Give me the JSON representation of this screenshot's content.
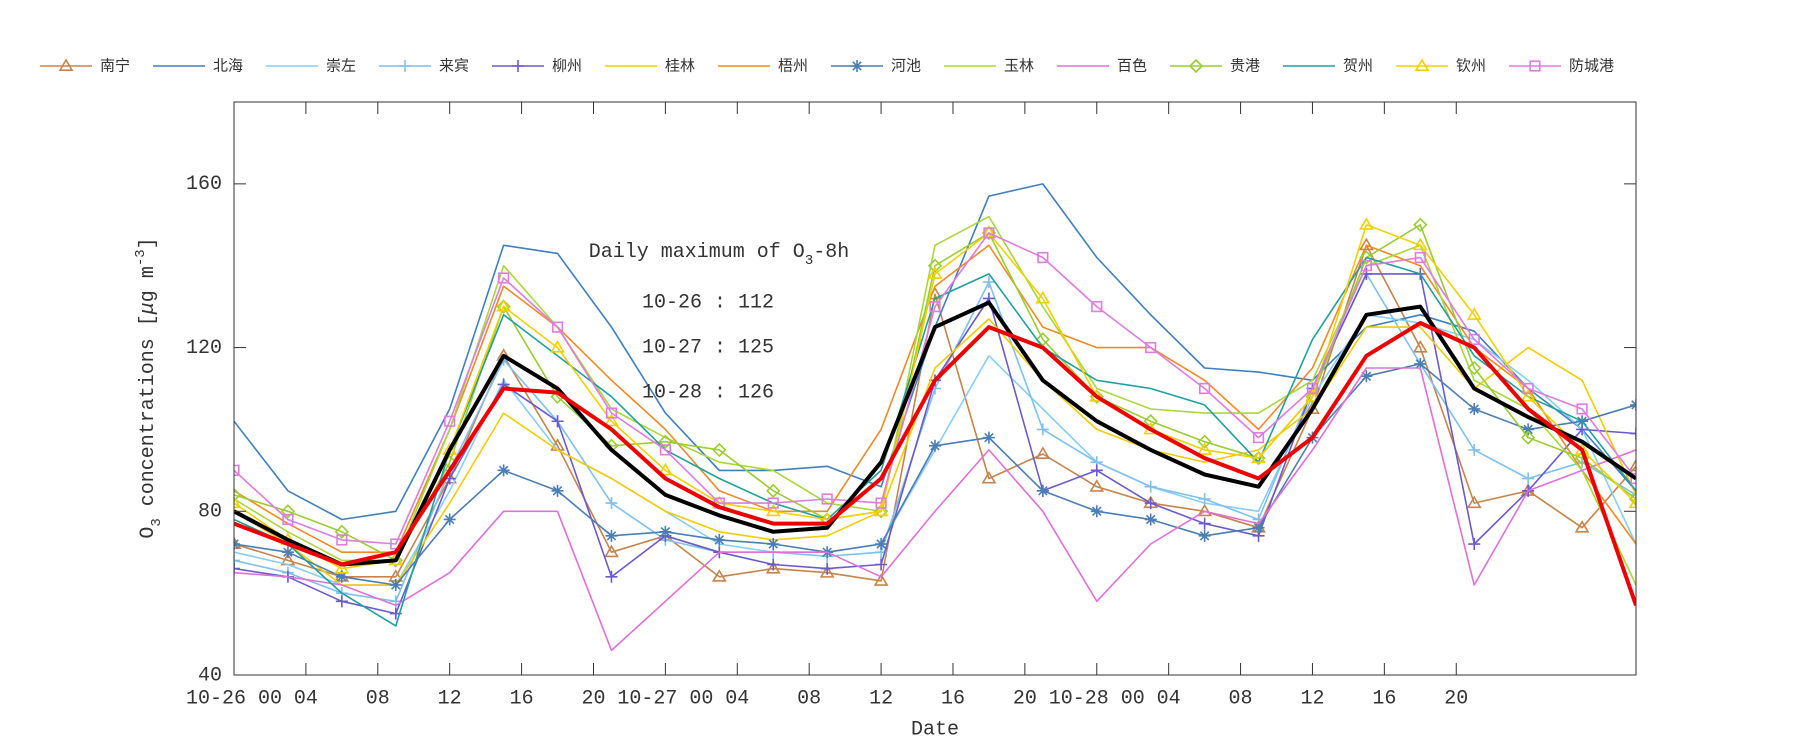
{
  "chart_data": {
    "type": "line",
    "xlabel": "Date",
    "ylabel": [
      {
        "text": "O"
      },
      {
        "text": "3",
        "shift": "sub"
      },
      {
        "text": " concentrations ["
      },
      {
        "text": "μ",
        "style": "italic"
      },
      {
        "text": "g m"
      },
      {
        "text": "-3",
        "shift": "super"
      },
      {
        "text": "]"
      }
    ],
    "annotation": {
      "title": [
        {
          "text": "Daily maximum of O"
        },
        {
          "text": "3",
          "shift": "sub"
        },
        {
          "text": "-8h"
        }
      ],
      "lines": [
        "10-26 : 112",
        "10-27 : 125",
        "10-28 : 126"
      ]
    },
    "legend": "top",
    "xlim": [
      0,
      78
    ],
    "ylim": [
      40,
      180
    ],
    "yticks": [
      40,
      80,
      120,
      160
    ],
    "xticks": [
      {
        "value": 0,
        "label": "10-26 00"
      },
      {
        "value": 4,
        "label": "04"
      },
      {
        "value": 8,
        "label": "08"
      },
      {
        "value": 12,
        "label": "12"
      },
      {
        "value": 16,
        "label": "16"
      },
      {
        "value": 20,
        "label": "20"
      },
      {
        "value": 24,
        "label": "10-27 00"
      },
      {
        "value": 28,
        "label": "04"
      },
      {
        "value": 32,
        "label": "08"
      },
      {
        "value": 36,
        "label": "12"
      },
      {
        "value": 40,
        "label": "16"
      },
      {
        "value": 44,
        "label": "20"
      },
      {
        "value": 48,
        "label": "10-28 00"
      },
      {
        "value": 52,
        "label": "04"
      },
      {
        "value": 56,
        "label": "08"
      },
      {
        "value": 60,
        "label": "12"
      },
      {
        "value": 64,
        "label": "16"
      },
      {
        "value": 68,
        "label": "20"
      }
    ],
    "x": [
      0,
      3,
      6,
      9,
      12,
      15,
      18,
      21,
      24,
      27,
      30,
      33,
      36,
      39,
      42,
      45,
      48,
      51,
      54,
      57,
      60,
      63,
      66,
      69,
      72,
      75,
      78
    ],
    "series": [
      {
        "name": "南宁",
        "color": "#c8834a",
        "marker": "triangle",
        "values": [
          72,
          68,
          64,
          64,
          88,
          118,
          96,
          70,
          74,
          64,
          66,
          65,
          63,
          133,
          88,
          94,
          86,
          82,
          80,
          76,
          105,
          145,
          120,
          82,
          85,
          76,
          91
        ]
      },
      {
        "name": "北海",
        "color": "#3f7fbf",
        "marker": "none",
        "values": [
          102,
          85,
          78,
          80,
          105,
          145,
          143,
          125,
          104,
          90,
          90,
          91,
          86,
          125,
          157,
          160,
          142,
          128,
          115,
          114,
          112,
          125,
          128,
          124,
          110,
          100,
          85
        ]
      },
      {
        "name": "崇左",
        "color": "#87cefa",
        "marker": "none",
        "values": [
          70,
          67,
          62,
          62,
          85,
          112,
          95,
          88,
          80,
          72,
          70,
          70,
          72,
          95,
          118,
          105,
          92,
          86,
          82,
          80,
          108,
          128,
          126,
          122,
          112,
          100,
          72
        ]
      },
      {
        "name": "来宾",
        "color": "#7ec0f0",
        "marker": "plus",
        "values": [
          68,
          65,
          60,
          58,
          90,
          117,
          102,
          82,
          73,
          70,
          70,
          69,
          70,
          110,
          136,
          100,
          92,
          86,
          83,
          78,
          110,
          138,
          116,
          95,
          88,
          92,
          84
        ]
      },
      {
        "name": "柳州",
        "color": "#6a5acd",
        "marker": "plus",
        "values": [
          66,
          64,
          58,
          55,
          88,
          111,
          102,
          64,
          74,
          70,
          67,
          66,
          67,
          112,
          132,
          85,
          90,
          82,
          77,
          74,
          110,
          138,
          138,
          72,
          85,
          100,
          99
        ]
      },
      {
        "name": "桂林",
        "color": "#f5cc00",
        "marker": "none",
        "values": [
          80,
          72,
          62,
          62,
          82,
          104,
          95,
          88,
          80,
          75,
          73,
          74,
          80,
          115,
          127,
          112,
          100,
          95,
          92,
          95,
          105,
          125,
          125,
          110,
          120,
          112,
          84
        ]
      },
      {
        "name": "梧州",
        "color": "#f08a24",
        "marker": "none",
        "values": [
          85,
          77,
          70,
          70,
          100,
          135,
          125,
          112,
          100,
          85,
          80,
          80,
          100,
          135,
          145,
          125,
          120,
          120,
          112,
          100,
          115,
          145,
          140,
          120,
          110,
          90,
          72
        ]
      },
      {
        "name": "河池",
        "color": "#4a7eb5",
        "marker": "star",
        "values": [
          72,
          70,
          64,
          62,
          78,
          90,
          85,
          74,
          75,
          73,
          72,
          70,
          72,
          96,
          98,
          85,
          80,
          78,
          74,
          76,
          98,
          113,
          116,
          105,
          100,
          102,
          106
        ]
      },
      {
        "name": "玉林",
        "color": "#a8d838",
        "marker": "none",
        "values": [
          83,
          75,
          68,
          68,
          100,
          140,
          125,
          105,
          98,
          92,
          90,
          82,
          80,
          145,
          152,
          130,
          110,
          105,
          104,
          104,
          112,
          140,
          145,
          112,
          105,
          90,
          62
        ]
      },
      {
        "name": "百色",
        "color": "#e070d8",
        "marker": "none",
        "values": [
          65,
          64,
          62,
          57,
          65,
          80,
          80,
          46,
          58,
          70,
          70,
          70,
          64,
          80,
          95,
          80,
          58,
          72,
          80,
          77,
          95,
          115,
          115,
          62,
          85,
          90,
          95
        ]
      },
      {
        "name": "贵港",
        "color": "#9acd32",
        "marker": "diamond",
        "values": [
          84,
          80,
          75,
          68,
          92,
          130,
          108,
          96,
          97,
          95,
          85,
          78,
          80,
          140,
          148,
          122,
          108,
          102,
          97,
          93,
          108,
          142,
          150,
          115,
          98,
          93,
          83
        ]
      },
      {
        "name": "贺州",
        "color": "#20a0a0",
        "marker": "none",
        "values": [
          78,
          72,
          60,
          52,
          95,
          128,
          118,
          108,
          95,
          88,
          82,
          78,
          90,
          132,
          138,
          120,
          112,
          110,
          106,
          92,
          122,
          142,
          138,
          118,
          108,
          102,
          85
        ]
      },
      {
        "name": "钦州",
        "color": "#f2d000",
        "marker": "triangle",
        "values": [
          82,
          73,
          66,
          68,
          95,
          130,
          120,
          102,
          90,
          82,
          80,
          78,
          80,
          138,
          148,
          132,
          108,
          100,
          95,
          93,
          108,
          150,
          145,
          128,
          108,
          95,
          82
        ]
      },
      {
        "name": "防城港",
        "color": "#e07be0",
        "marker": "square",
        "values": [
          90,
          78,
          73,
          72,
          102,
          137,
          125,
          104,
          95,
          82,
          82,
          83,
          82,
          130,
          148,
          142,
          130,
          120,
          110,
          98,
          110,
          140,
          142,
          122,
          110,
          105,
          88
        ]
      },
      {
        "color": "#000000",
        "width": 4,
        "marker": "none",
        "values": [
          80,
          73,
          67,
          68,
          95,
          118,
          110,
          95,
          84,
          79,
          75,
          76,
          92,
          125,
          131,
          112,
          102,
          95,
          89,
          86,
          105,
          128,
          130,
          110,
          103,
          97,
          88
        ]
      },
      {
        "color": "#ee0000",
        "width": 4,
        "marker": "none",
        "values": [
          77,
          72,
          67,
          70,
          90,
          110,
          109,
          100,
          88,
          81,
          77,
          77,
          88,
          112,
          125,
          120,
          108,
          100,
          93,
          88,
          98,
          118,
          126,
          120,
          105,
          95,
          57
        ]
      }
    ]
  }
}
